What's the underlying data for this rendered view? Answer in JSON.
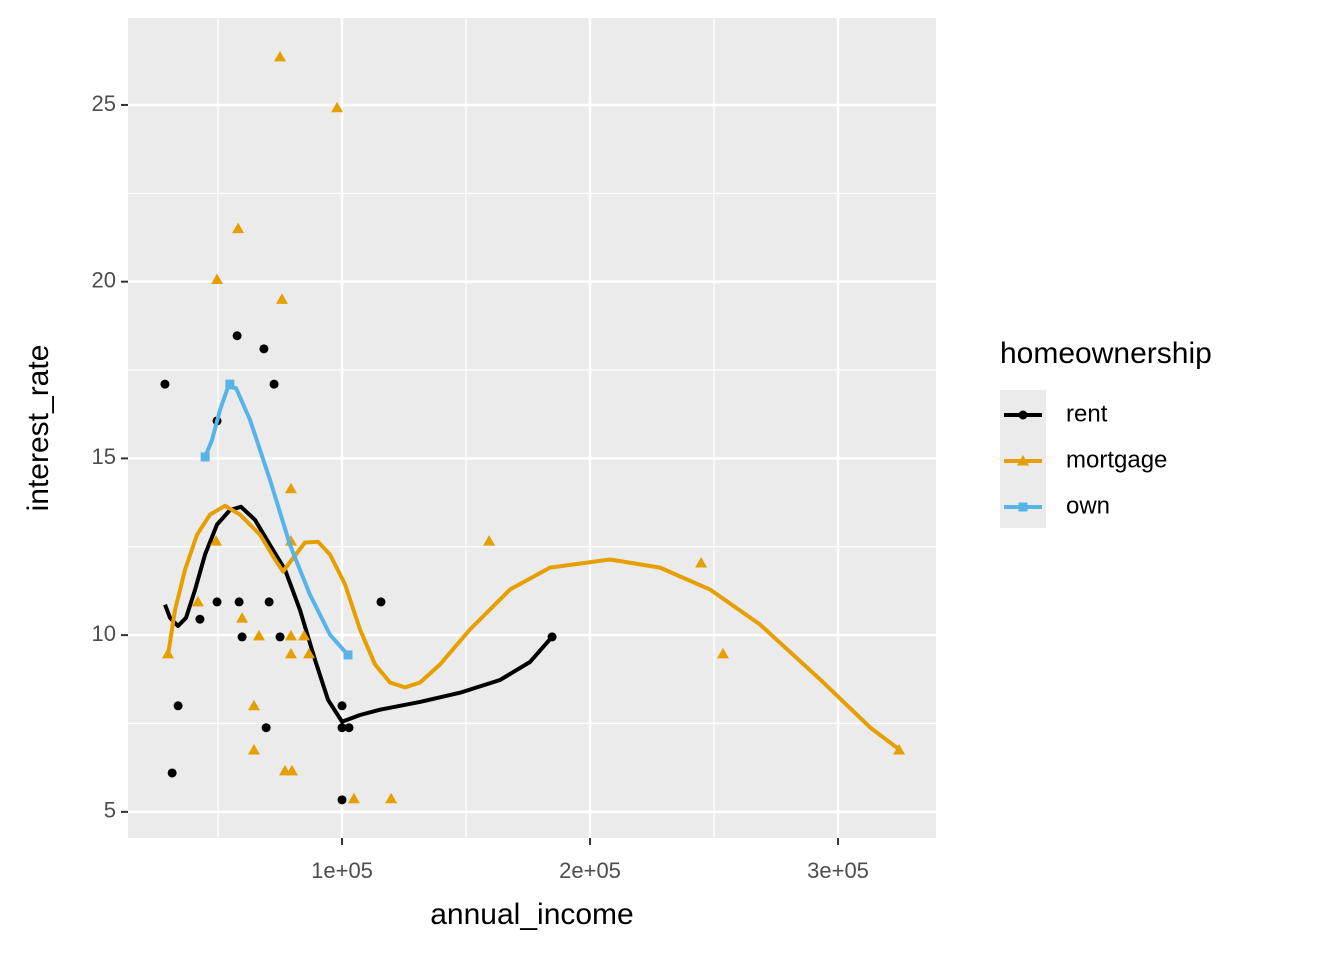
{
  "chart_data": {
    "type": "scatter",
    "x_label": "annual_income",
    "y_label": "interest_rate",
    "legend_title": "homeownership",
    "legend_position": "right",
    "grid": true,
    "minor_grid": true,
    "xlim": [
      13700,
      339500
    ],
    "ylim": [
      4.26,
      27.46
    ],
    "xticks": [
      {
        "value": 100000,
        "label": "1e+05"
      },
      {
        "value": 200000,
        "label": "2e+05"
      },
      {
        "value": 300000,
        "label": "3e+05"
      }
    ],
    "yticks": [
      5,
      10,
      15,
      20,
      25
    ],
    "series": [
      {
        "name": "rent",
        "color": "#000000",
        "shape": "circle",
        "x": [
          28600,
          49600,
          57700,
          68500,
          72600,
          33900,
          31500,
          42700,
          49600,
          58500,
          59700,
          70600,
          75000,
          69400,
          100000,
          100000,
          102800,
          100000,
          115700,
          184700
        ],
        "values": [
          17.1,
          16.06,
          18.47,
          18.1,
          17.1,
          8.0,
          6.1,
          10.45,
          10.94,
          10.94,
          9.95,
          10.94,
          9.95,
          7.38,
          8.0,
          7.38,
          7.38,
          5.34,
          10.94,
          9.95
        ],
        "smooth": {
          "x": [
            28630,
            30640,
            33870,
            37100,
            40730,
            44760,
            49600,
            54840,
            59270,
            64920,
            70970,
            77020,
            83060,
            89110,
            94350,
            100000,
            107250,
            115320,
            131440,
            147580,
            163700,
            175800,
            184670
          ],
          "values": [
            10.86,
            10.49,
            10.26,
            10.49,
            11.28,
            12.28,
            13.13,
            13.54,
            13.63,
            13.26,
            12.55,
            11.85,
            10.71,
            9.3,
            8.17,
            7.55,
            7.74,
            7.89,
            8.11,
            8.37,
            8.73,
            9.24,
            9.95
          ]
        }
      },
      {
        "name": "mortgage",
        "color": "#E69F00",
        "shape": "triangle",
        "x": [
          75000,
          98000,
          58100,
          49600,
          75800,
          79400,
          49200,
          79400,
          29800,
          41900,
          59700,
          66500,
          79400,
          84700,
          79400,
          86700,
          64500,
          64500,
          77000,
          79800,
          104800,
          119800,
          159300,
          244800,
          253600,
          324600
        ],
        "values": [
          26.36,
          24.92,
          21.5,
          20.06,
          19.5,
          14.14,
          12.66,
          12.66,
          9.47,
          10.94,
          10.48,
          9.98,
          9.98,
          9.98,
          9.47,
          9.47,
          8.0,
          6.75,
          6.16,
          6.16,
          5.37,
          5.37,
          12.66,
          12.04,
          9.47,
          6.75
        ],
        "smooth": {
          "x": [
            29840,
            32660,
            36690,
            41530,
            46770,
            52820,
            58870,
            66930,
            72980,
            76200,
            79830,
            85070,
            90310,
            95150,
            101200,
            107250,
            113300,
            119350,
            125400,
            131440,
            139510,
            151600,
            167730,
            183860,
            208050,
            228220,
            248380,
            268540,
            292730,
            312890,
            324580
          ],
          "values": [
            9.44,
            10.71,
            11.85,
            12.84,
            13.41,
            13.66,
            13.41,
            12.84,
            12.14,
            11.8,
            12.14,
            12.62,
            12.64,
            12.28,
            11.44,
            10.16,
            9.17,
            8.66,
            8.52,
            8.66,
            9.17,
            10.16,
            11.29,
            11.91,
            12.14,
            11.91,
            11.29,
            10.3,
            8.75,
            7.39,
            6.77
          ]
        }
      },
      {
        "name": "own",
        "color": "#56B4E9",
        "shape": "square",
        "x": [
          44800,
          54800,
          102400
        ],
        "values": [
          15.04,
          17.1,
          9.44
        ],
        "smooth": {
          "x": [
            44760,
            47580,
            50800,
            54030,
            57250,
            62900,
            70970,
            79030,
            87100,
            95150,
            102400
          ],
          "values": [
            15.04,
            15.52,
            16.37,
            17.02,
            16.99,
            16.09,
            14.39,
            12.55,
            11.14,
            10.01,
            9.44
          ]
        }
      }
    ]
  }
}
